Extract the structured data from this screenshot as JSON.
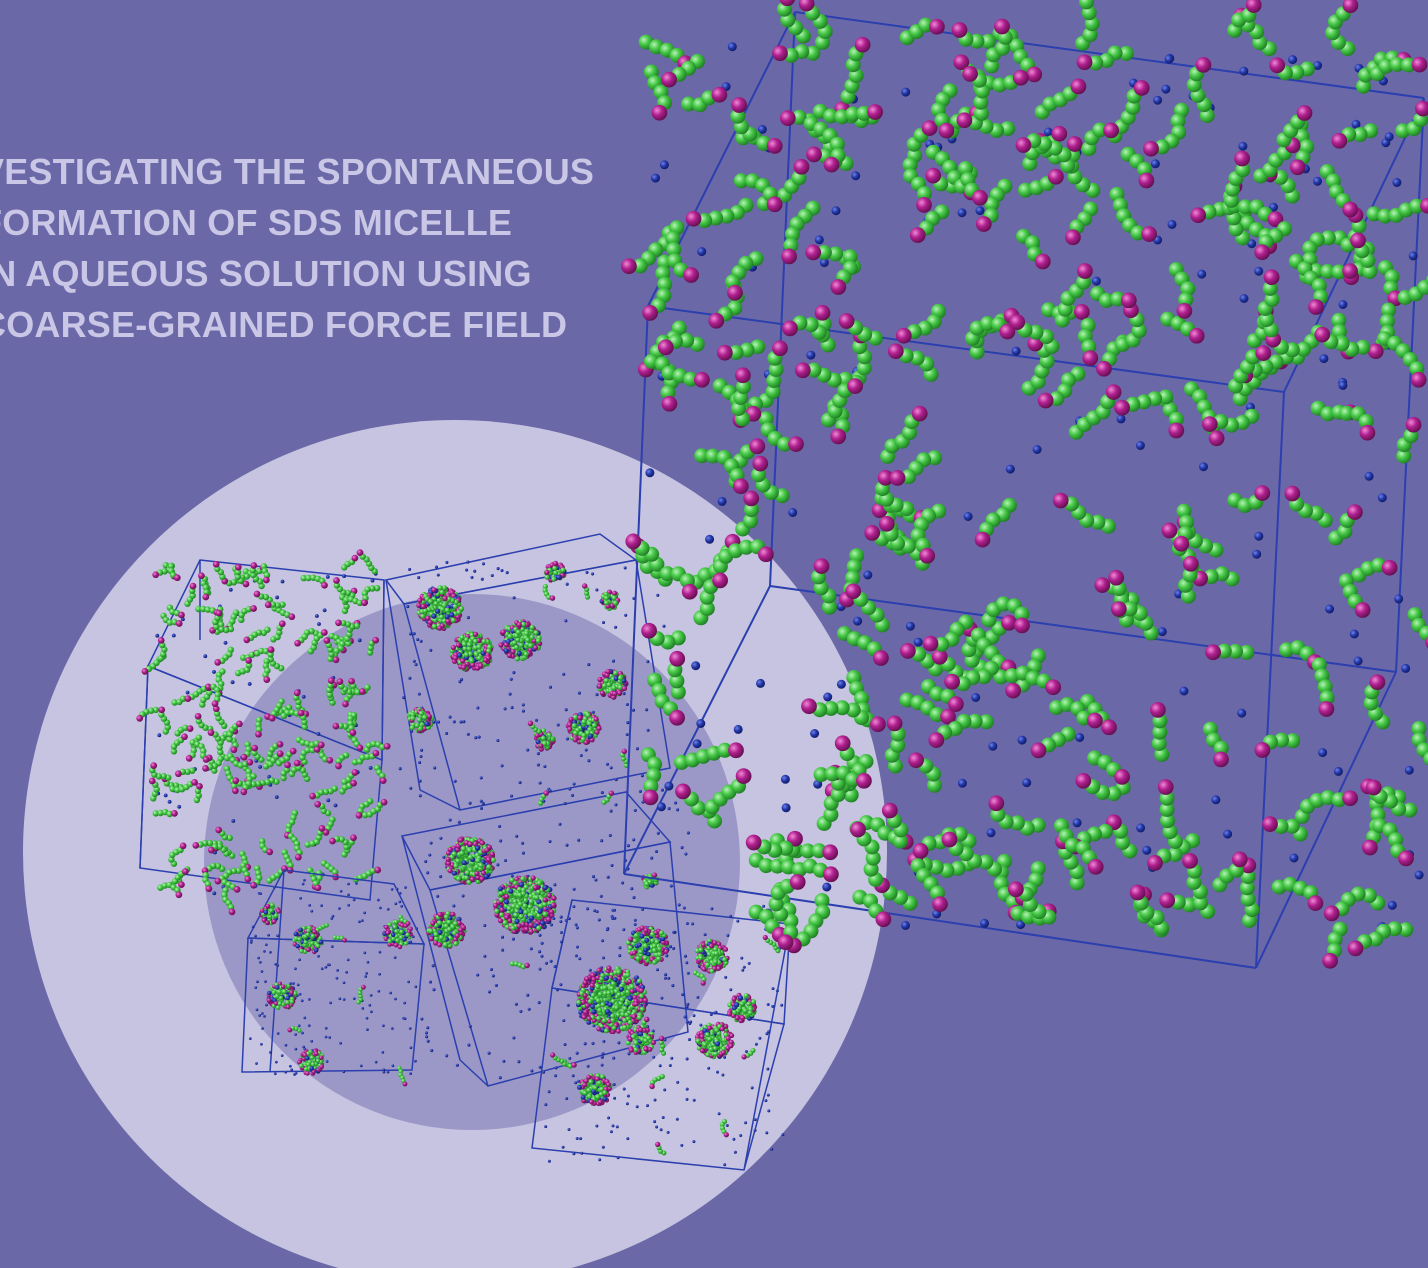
{
  "cover": {
    "title_lines": [
      "VESTIGATING THE SPONTANEOUS",
      "FORMATION OF  SDS MICELLE",
      "IN AQUEOUS SOLUTION USING",
      "COARSE-GRAINED FORCE FIELD"
    ],
    "colors": {
      "background": "#6b68a8",
      "title_text": "#c9c6e6",
      "outer_disc": "#c6c4e0",
      "inner_disc": "#9b98c8",
      "box_edges": "#2b3fae",
      "ion_beads": "#1d2f9a",
      "tail_beads": "#3fbf3f",
      "head_beads": "#b0208f"
    },
    "panels": [
      {
        "state": "dispersed surfactants"
      },
      {
        "state": "small micelles"
      },
      {
        "state": "larger micelles"
      },
      {
        "state": "few micelles"
      },
      {
        "state": "merged micelles"
      },
      {
        "state": "dispersed surfactants (enlarged view)"
      }
    ]
  }
}
